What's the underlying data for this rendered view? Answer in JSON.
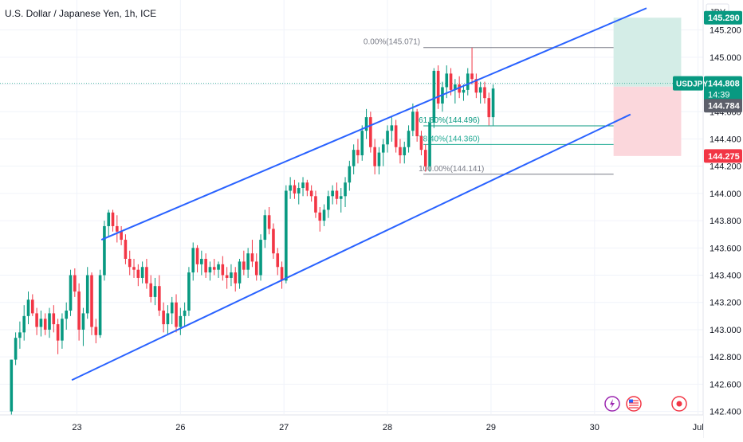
{
  "header": {
    "title": "U.S. Dollar / Japanese Yen, 1h, ICE"
  },
  "price_axis": {
    "currency": "JPY"
  },
  "chart_data": {
    "type": "candlestick",
    "title": "U.S. Dollar / Japanese Yen, 1h, ICE",
    "symbol": "USDJPY",
    "ylim": [
      142.38,
      145.42
    ],
    "y_ticks": [
      "142.400",
      "142.600",
      "142.800",
      "143.000",
      "143.200",
      "143.400",
      "143.600",
      "143.800",
      "144.000",
      "144.200",
      "144.400",
      "144.600",
      "144.800",
      "145.000",
      "145.200"
    ],
    "x_ticks": [
      {
        "label": "23",
        "t": 15.5
      },
      {
        "label": "26",
        "t": 40.0
      },
      {
        "label": "27",
        "t": 64.5
      },
      {
        "label": "28",
        "t": 89.0
      },
      {
        "label": "29",
        "t": 113.5
      },
      {
        "label": "30",
        "t": 138.0
      },
      {
        "label": "Jul",
        "t": 162.5
      }
    ],
    "xlim": [
      -2.7,
      163.7
    ],
    "candles": [
      [
        142.4,
        142.78,
        142.36,
        142.78
      ],
      [
        142.78,
        142.98,
        142.74,
        142.94
      ],
      [
        142.94,
        143.06,
        142.86,
        142.98
      ],
      [
        142.98,
        143.18,
        142.92,
        143.1
      ],
      [
        143.1,
        143.28,
        143.04,
        143.22
      ],
      [
        143.22,
        143.26,
        143.1,
        143.12
      ],
      [
        143.12,
        143.16,
        142.96,
        143.02
      ],
      [
        143.02,
        143.14,
        142.95,
        143.08
      ],
      [
        143.08,
        143.12,
        142.96,
        143.0
      ],
      [
        143.0,
        143.16,
        142.94,
        143.12
      ],
      [
        143.12,
        143.18,
        142.98,
        143.04
      ],
      [
        143.04,
        143.08,
        142.82,
        142.92
      ],
      [
        142.92,
        143.12,
        142.86,
        143.08
      ],
      [
        143.08,
        143.2,
        143.0,
        143.14
      ],
      [
        143.14,
        143.44,
        143.1,
        143.4
      ],
      [
        143.4,
        143.45,
        143.24,
        143.28
      ],
      [
        143.28,
        143.34,
        142.92,
        143.0
      ],
      [
        143.0,
        143.16,
        142.88,
        143.12
      ],
      [
        143.12,
        143.46,
        143.08,
        143.4
      ],
      [
        143.4,
        143.42,
        142.96,
        143.02
      ],
      [
        143.02,
        143.08,
        142.9,
        142.96
      ],
      [
        142.96,
        143.44,
        142.94,
        143.4
      ],
      [
        143.4,
        143.8,
        143.36,
        143.76
      ],
      [
        143.76,
        143.88,
        143.68,
        143.86
      ],
      [
        143.86,
        143.88,
        143.72,
        143.76
      ],
      [
        143.76,
        143.84,
        143.64,
        143.72
      ],
      [
        143.72,
        143.76,
        143.62,
        143.66
      ],
      [
        143.66,
        143.7,
        143.48,
        143.52
      ],
      [
        143.52,
        143.58,
        143.4,
        143.46
      ],
      [
        143.46,
        143.52,
        143.38,
        143.44
      ],
      [
        143.44,
        143.48,
        143.32,
        143.38
      ],
      [
        143.38,
        143.5,
        143.34,
        143.46
      ],
      [
        143.46,
        143.52,
        143.3,
        143.34
      ],
      [
        143.34,
        143.4,
        143.2,
        143.24
      ],
      [
        143.24,
        143.38,
        143.18,
        143.32
      ],
      [
        143.32,
        143.4,
        143.1,
        143.14
      ],
      [
        143.14,
        143.2,
        142.98,
        143.04
      ],
      [
        143.04,
        143.18,
        142.96,
        143.12
      ],
      [
        143.12,
        143.24,
        143.04,
        143.2
      ],
      [
        143.2,
        143.26,
        142.98,
        143.02
      ],
      [
        143.02,
        143.16,
        142.96,
        143.1
      ],
      [
        143.1,
        143.2,
        143.02,
        143.14
      ],
      [
        143.14,
        143.46,
        143.1,
        143.42
      ],
      [
        143.42,
        143.64,
        143.36,
        143.6
      ],
      [
        143.6,
        143.62,
        143.42,
        143.48
      ],
      [
        143.48,
        143.58,
        143.4,
        143.52
      ],
      [
        143.52,
        143.56,
        143.38,
        143.42
      ],
      [
        143.42,
        143.5,
        143.36,
        143.46
      ],
      [
        143.46,
        143.52,
        143.4,
        143.44
      ],
      [
        143.44,
        143.5,
        143.38,
        143.48
      ],
      [
        143.48,
        143.54,
        143.36,
        143.4
      ],
      [
        143.4,
        143.46,
        143.3,
        143.38
      ],
      [
        143.38,
        143.48,
        143.32,
        143.42
      ],
      [
        143.42,
        143.46,
        143.28,
        143.34
      ],
      [
        143.34,
        143.52,
        143.3,
        143.5
      ],
      [
        143.5,
        143.58,
        143.4,
        143.44
      ],
      [
        143.44,
        143.6,
        143.38,
        143.56
      ],
      [
        143.56,
        143.66,
        143.46,
        143.5
      ],
      [
        143.5,
        143.56,
        143.36,
        143.4
      ],
      [
        143.4,
        143.7,
        143.36,
        143.66
      ],
      [
        143.66,
        143.88,
        143.6,
        143.84
      ],
      [
        143.84,
        143.9,
        143.7,
        143.74
      ],
      [
        143.74,
        143.78,
        143.52,
        143.56
      ],
      [
        143.56,
        143.6,
        143.4,
        143.46
      ],
      [
        143.46,
        143.5,
        143.3,
        143.36
      ],
      [
        143.36,
        144.06,
        143.34,
        144.02
      ],
      [
        144.02,
        144.12,
        143.96,
        144.06
      ],
      [
        144.06,
        144.1,
        143.96,
        144.0
      ],
      [
        144.0,
        144.08,
        143.92,
        144.04
      ],
      [
        144.04,
        144.12,
        143.98,
        144.08
      ],
      [
        144.08,
        144.1,
        143.98,
        144.02
      ],
      [
        144.02,
        144.06,
        143.94,
        143.98
      ],
      [
        143.98,
        144.02,
        143.82,
        143.86
      ],
      [
        143.86,
        143.9,
        143.72,
        143.8
      ],
      [
        143.8,
        143.92,
        143.76,
        143.88
      ],
      [
        143.88,
        144.02,
        143.82,
        143.98
      ],
      [
        143.98,
        144.06,
        143.92,
        144.02
      ],
      [
        144.02,
        144.08,
        143.92,
        143.96
      ],
      [
        143.96,
        144.04,
        143.86,
        143.98
      ],
      [
        143.98,
        144.12,
        143.9,
        144.08
      ],
      [
        144.08,
        144.24,
        144.02,
        144.2
      ],
      [
        144.2,
        144.36,
        144.14,
        144.32
      ],
      [
        144.32,
        144.4,
        144.22,
        144.28
      ],
      [
        144.28,
        144.5,
        144.24,
        144.46
      ],
      [
        144.46,
        144.62,
        144.4,
        144.56
      ],
      [
        144.56,
        144.6,
        144.3,
        144.34
      ],
      [
        144.34,
        144.4,
        144.14,
        144.2
      ],
      [
        144.2,
        144.34,
        144.14,
        144.3
      ],
      [
        144.3,
        144.4,
        144.2,
        144.36
      ],
      [
        144.36,
        144.5,
        144.3,
        144.46
      ],
      [
        144.46,
        144.56,
        144.38,
        144.5
      ],
      [
        144.5,
        144.54,
        144.3,
        144.34
      ],
      [
        144.34,
        144.4,
        144.22,
        144.28
      ],
      [
        144.28,
        144.38,
        144.22,
        144.34
      ],
      [
        144.34,
        144.5,
        144.3,
        144.46
      ],
      [
        144.46,
        144.66,
        144.42,
        144.6
      ],
      [
        144.6,
        144.62,
        144.38,
        144.42
      ],
      [
        144.42,
        144.46,
        144.28,
        144.32
      ],
      [
        144.32,
        144.36,
        144.16,
        144.2
      ],
      [
        144.2,
        144.56,
        144.16,
        144.52
      ],
      [
        144.52,
        144.92,
        144.48,
        144.9
      ],
      [
        144.9,
        144.94,
        144.62,
        144.66
      ],
      [
        144.66,
        144.82,
        144.6,
        144.78
      ],
      [
        144.78,
        144.94,
        144.7,
        144.88
      ],
      [
        144.88,
        144.92,
        144.72,
        144.76
      ],
      [
        144.76,
        144.84,
        144.66,
        144.8
      ],
      [
        144.8,
        144.86,
        144.7,
        144.74
      ],
      [
        144.74,
        144.8,
        144.68,
        144.76
      ],
      [
        144.76,
        144.92,
        144.72,
        144.88
      ],
      [
        144.88,
        145.07,
        144.8,
        144.84
      ],
      [
        144.84,
        144.88,
        144.7,
        144.74
      ],
      [
        144.74,
        144.82,
        144.66,
        144.78
      ],
      [
        144.78,
        144.82,
        144.66,
        144.7
      ],
      [
        144.7,
        144.74,
        144.5,
        144.56
      ],
      [
        144.56,
        144.8,
        144.5,
        144.77
      ]
    ],
    "annotations": {
      "channel_upper": {
        "from": [
          21.3,
          143.66
        ],
        "to": [
          150.3,
          145.36
        ]
      },
      "channel_lower": {
        "from": [
          14.3,
          142.63
        ],
        "to": [
          146.5,
          144.58
        ]
      },
      "fib": [
        {
          "label": "0.00%(145.071)",
          "price": 145.071,
          "color": "#787b86"
        },
        {
          "label": "61.80%(144.496)",
          "price": 144.496,
          "color": "#089981"
        },
        {
          "label": "78.40%(144.360)",
          "price": 144.36,
          "color": "#22ab94"
        },
        {
          "label": "100.00%(144.141)",
          "price": 144.141,
          "color": "#787b86"
        }
      ],
      "fib_range_t": [
        97.5,
        142.5
      ],
      "position": {
        "t0": 142.5,
        "t1": 158.5,
        "entry": 144.784,
        "target": 145.29,
        "stop": 144.275
      },
      "current_price_line": 144.808
    },
    "labels": {
      "target": "145.290",
      "symbol_tag": "USDJPY",
      "last_price": "144.808",
      "countdown": "14:39",
      "entry": "144.784",
      "stop": "144.275"
    },
    "colors": {
      "up": "#089981",
      "down": "#f23645",
      "channel": "#2962ff",
      "target_zone": "#d4ede7",
      "stop_zone": "#fbd7dc",
      "grid": "#f0f3fa",
      "text": "#131722"
    }
  }
}
